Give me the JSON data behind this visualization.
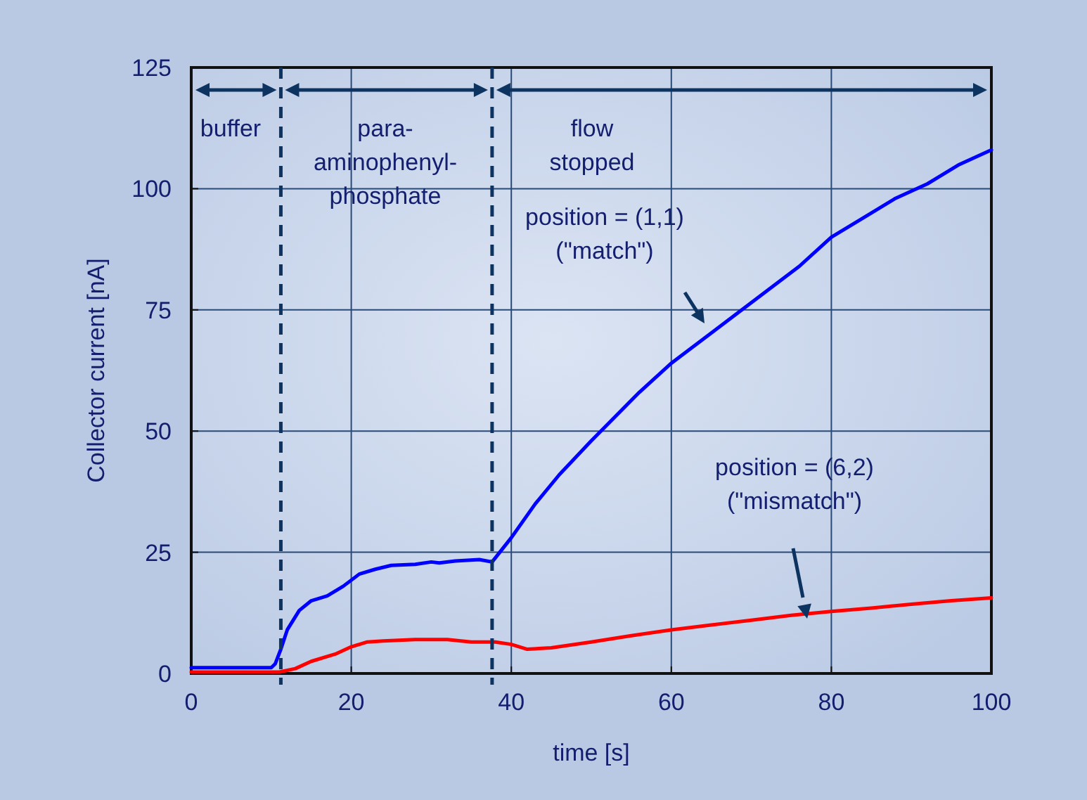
{
  "chart_data": {
    "type": "line",
    "xlabel": "time [s]",
    "ylabel": "Collector current [nA]",
    "xlim": [
      0,
      100
    ],
    "ylim": [
      0,
      125
    ],
    "xticks": [
      0,
      20,
      40,
      60,
      80,
      100
    ],
    "yticks": [
      0,
      25,
      50,
      75,
      100,
      125
    ],
    "grid": true,
    "marker": "none",
    "line_style": "solid",
    "series": [
      {
        "color": "#0000ff",
        "x": [
          0,
          5,
          10,
          10.5,
          11.2,
          12,
          13.5,
          15,
          17,
          19,
          21,
          23,
          25,
          28,
          30,
          31,
          33,
          36,
          37.6,
          40,
          43,
          46,
          50,
          53,
          56,
          60,
          64,
          68,
          72,
          76,
          80,
          84,
          88,
          92,
          96,
          100
        ],
        "values": [
          1.2,
          1.2,
          1.2,
          2,
          5,
          9,
          13,
          15,
          16,
          18,
          20.5,
          21.5,
          22.3,
          22.5,
          23,
          22.8,
          23.2,
          23.5,
          23,
          28,
          35,
          41,
          48,
          53,
          58,
          64,
          69,
          74,
          79,
          84,
          90,
          94,
          98,
          101,
          105,
          108
        ]
      },
      {
        "color": "#ff0000",
        "x": [
          0,
          5,
          11,
          13,
          15,
          18,
          20,
          22,
          24,
          28,
          32,
          35,
          38,
          40,
          42,
          45,
          50,
          55,
          60,
          65,
          70,
          75,
          80,
          85,
          90,
          95,
          100
        ],
        "values": [
          0.3,
          0.3,
          0.3,
          1,
          2.5,
          4,
          5.5,
          6.5,
          6.7,
          7,
          7,
          6.5,
          6.5,
          6,
          5,
          5.3,
          6.5,
          7.8,
          9,
          10,
          11,
          12,
          12.8,
          13.5,
          14.3,
          15,
          15.6
        ]
      }
    ],
    "ref_lines": [
      {
        "axis": "x",
        "value": 11.2,
        "color": "#0d3460",
        "line_style": "dashed"
      },
      {
        "axis": "x",
        "value": 37.6,
        "color": "#0d3460",
        "line_style": "dashed"
      }
    ],
    "annotations": [
      "buffer",
      "para-\naminophenyl-\nphosphate",
      "flow\nstopped",
      "position = (1,1)\n(\"match\")",
      "position = (6,2)\n(\"mismatch\")"
    ]
  }
}
